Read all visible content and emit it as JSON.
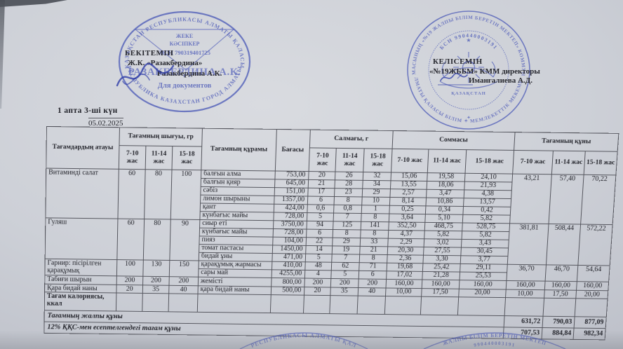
{
  "colors": {
    "stamp_blue": "#3f4eb4",
    "ink": "#23242b",
    "paper": "#cdd0d7"
  },
  "heading": {
    "week_day": "1 апта  3-ші күн",
    "date": "05.02.2025"
  },
  "stamps": {
    "left": {
      "ring_top": "ҚАЗАҚСТАН РЕСПУБЛИКАСЫ АЛМАТЫ ҚАЛАСЫ",
      "ring_bottom": "РЕСПУБЛИКА КАЗАХСТАН ГОРОД АЛМАТЫ",
      "center_line1": "ЖЕКЕ",
      "center_line2": "КӘСІПКЕР",
      "center_line3": "ЖСН 790319401725",
      "center_name": "РАЗАКБЕРДИНА А.К.",
      "doc_label": "Для документов"
    },
    "left_overlay": {
      "approve": "БЕКІТЕМІН",
      "line2": "Ж.К. «Разакбердина»",
      "line3": "Разакбердина А.К."
    },
    "right": {
      "ring_top": "БАСҚАРМАСЫНЫҢ «№19 ЖАЛПЫ БІЛІМ БЕРЕТІН МЕКТЕП» КОММУНАЛДЫҚ",
      "ring_bottom": "АЛМАТЫ ҚАЛАСЫ БІЛІМ ✦ МЕМЛЕКЕТТІК МЕКЕМЕСІ",
      "bsn": "БСН 990440003191",
      "emblem_star": "★",
      "emblem_label": "ҚАЗАҚСТАН"
    },
    "right_overlay": {
      "agree": "КЕЛІСЕМІН",
      "line2": "«№19ЖББМ» КММ директоры",
      "line3": "Иманғалиева А.Д."
    },
    "bottom_center_fragment": "РЕСПУБЛИКАСЫ АЛМАТЫ ҚАЛ",
    "bottom_right_fragment_outer": "ЖАЛПЫ БІЛІМ БЕРЕТІН МЕКТЕП",
    "bottom_right_fragment_inner": "990440003191"
  },
  "table": {
    "headers": {
      "dish": "Тағамдардың атауы",
      "output": "Тағамның шығуы, гр",
      "composition": "Тағамның құрамы",
      "price": "Бағасы",
      "weight": "Салмағы, г",
      "sum": "Соммасы",
      "cost": "Тағамның құны",
      "ages": [
        "7-10 жас",
        "11-14 жас",
        "15-18 жас"
      ]
    },
    "groups": [
      {
        "name": "Витаминді салат",
        "out": [
          "60",
          "80",
          "100"
        ],
        "cost": [
          "43,21",
          "57,40",
          "70,22"
        ],
        "rows": [
          [
            "балғын алма",
            "753,00",
            "20",
            "26",
            "32",
            "15,06",
            "19,58",
            "24,10"
          ],
          [
            "балғын қияр",
            "645,00",
            "21",
            "28",
            "34",
            "13,55",
            "18,06",
            "21,93"
          ],
          [
            "сәбіз",
            "151,00",
            "17",
            "23",
            "29",
            "2,57",
            "3,47",
            "4,38"
          ],
          [
            "лимон шырыны",
            "1357,00",
            "6",
            "8",
            "10",
            "8,14",
            "10,86",
            "13,57"
          ],
          [
            "қант",
            "424,00",
            "0,6",
            "0,8",
            "1",
            "0,25",
            "0,34",
            "0,42"
          ],
          [
            "күнбағыс майы",
            "728,00",
            "5",
            "7",
            "8",
            "3,64",
            "5,10",
            "5,82"
          ]
        ]
      },
      {
        "name": "Гуляш",
        "out": [
          "60",
          "80",
          "90"
        ],
        "cost": [
          "381,81",
          "508,44",
          "572,22"
        ],
        "rows": [
          [
            "сиыр еті",
            "3750,00",
            "94",
            "125",
            "141",
            "352,50",
            "468,75",
            "528,75"
          ],
          [
            "күнбағыс майы",
            "728,00",
            "6",
            "8",
            "8",
            "4,37",
            "5,82",
            "5,82"
          ],
          [
            "пияз",
            "104,00",
            "22",
            "29",
            "33",
            "2,29",
            "3,02",
            "3,43"
          ],
          [
            "томат пастасы",
            "1450,00",
            "14",
            "19",
            "21",
            "20,30",
            "27,55",
            "30,45"
          ],
          [
            "бидай ұны",
            "471,00",
            "5",
            "7",
            "8",
            "2,36",
            "3,30",
            "3,77"
          ]
        ]
      },
      {
        "name": "Гарнир: пісірілген қарақұмық",
        "out": [
          "100",
          "130",
          "150"
        ],
        "cost": [
          "36,70",
          "46,70",
          "54,64"
        ],
        "rows": [
          [
            "қарақұмық жармасы",
            "410,00",
            "48",
            "62",
            "71",
            "19,68",
            "25,42",
            "29,11"
          ],
          [
            "сары май",
            "4255,00",
            "4",
            "5",
            "6",
            "17,02",
            "21,28",
            "25,53"
          ]
        ]
      },
      {
        "name": "Табиғи шырын",
        "out": [
          "200",
          "200",
          "200"
        ],
        "cost": [
          "160,00",
          "160,00",
          "160,00"
        ],
        "rows": [
          [
            "жемісті",
            "800,00",
            "200",
            "200",
            "200",
            "160,00",
            "160,00",
            "160,00"
          ]
        ]
      },
      {
        "name": "Қара бидай наны",
        "out": [
          "20",
          "35",
          "40"
        ],
        "cost": [
          "10,00",
          "17,50",
          "20,00"
        ],
        "rows": [
          [
            "қара бидай наны",
            "500,00",
            "20",
            "35",
            "40",
            "10,00",
            "17,50",
            "20,00"
          ]
        ]
      },
      {
        "name": "Тағам калориясы, ккал",
        "bold": true,
        "tall": true,
        "out": [
          "",
          "",
          ""
        ],
        "cost": [
          "",
          "",
          ""
        ],
        "rows": [
          [
            "",
            "",
            "",
            "",
            "",
            "",
            "",
            ""
          ]
        ]
      }
    ],
    "footer": [
      {
        "label": "Тағамның жалпы құны",
        "values": [
          "631,72",
          "790,03",
          "877,09"
        ]
      },
      {
        "label": "12% ҚҚС-мен есептелгендегі тағам құны",
        "values": [
          "707,53",
          "884,84",
          "982,34"
        ]
      }
    ]
  }
}
